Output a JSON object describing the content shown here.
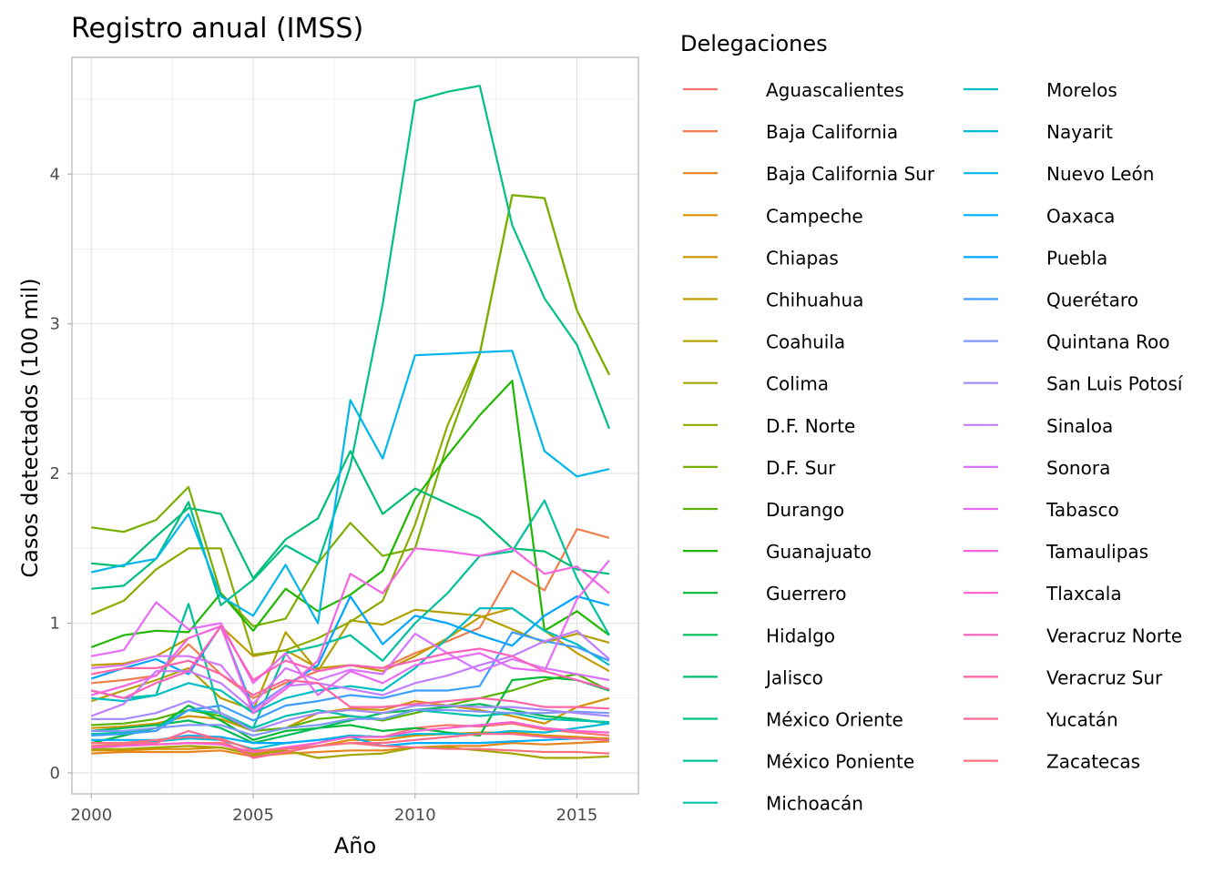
{
  "chart_data": {
    "type": "line",
    "title": "Registro anual (IMSS)",
    "xlabel": "Año",
    "ylabel": "Casos detectados (100 mil)",
    "xlim": [
      1999.4,
      2016.9
    ],
    "ylim": [
      -0.14,
      4.78
    ],
    "xticks": [
      2000,
      2005,
      2010,
      2015
    ],
    "yticks": [
      0,
      1,
      2,
      3,
      4
    ],
    "grid": true,
    "legend_title": "Delegaciones",
    "legend_position": "right",
    "x": [
      2000,
      2001,
      2002,
      2003,
      2004,
      2005,
      2006,
      2007,
      2008,
      2009,
      2010,
      2011,
      2012,
      2013,
      2014,
      2015,
      2016
    ],
    "series": [
      {
        "name": "Aguascalientes",
        "color": "#F8766D",
        "values": [
          0.18,
          0.19,
          0.19,
          0.2,
          0.2,
          0.13,
          0.16,
          0.2,
          0.25,
          0.24,
          0.3,
          0.32,
          0.31,
          0.33,
          0.29,
          0.27,
          0.25
        ]
      },
      {
        "name": "Baja California",
        "color": "#F07E4D",
        "values": [
          0.6,
          0.62,
          0.65,
          0.86,
          0.66,
          0.5,
          0.6,
          0.68,
          0.72,
          0.7,
          0.8,
          0.88,
          0.97,
          1.35,
          1.22,
          1.63,
          1.57
        ]
      },
      {
        "name": "Baja California Sur",
        "color": "#E7851E",
        "values": [
          0.13,
          0.14,
          0.14,
          0.14,
          0.15,
          0.11,
          0.13,
          0.14,
          0.15,
          0.15,
          0.17,
          0.18,
          0.18,
          0.2,
          0.19,
          0.2,
          0.21
        ]
      },
      {
        "name": "Campeche",
        "color": "#DD8D00",
        "values": [
          0.15,
          0.15,
          0.16,
          0.16,
          0.17,
          0.13,
          0.16,
          0.18,
          0.22,
          0.22,
          0.25,
          0.26,
          0.27,
          0.27,
          0.25,
          0.24,
          0.23
        ]
      },
      {
        "name": "Chiapas",
        "color": "#D09400",
        "values": [
          0.3,
          0.31,
          0.33,
          0.38,
          0.36,
          0.28,
          0.3,
          0.4,
          0.43,
          0.42,
          0.48,
          0.45,
          0.42,
          0.38,
          0.33,
          0.44,
          0.5
        ]
      },
      {
        "name": "Chihuahua",
        "color": "#C29B00",
        "values": [
          0.72,
          0.73,
          0.78,
          0.9,
          0.98,
          0.78,
          0.82,
          0.7,
          0.72,
          0.68,
          0.78,
          0.9,
          1.04,
          1.1,
          0.95,
          0.8,
          0.68
        ]
      },
      {
        "name": "Coahuila",
        "color": "#B3A000",
        "values": [
          0.48,
          0.55,
          0.62,
          0.7,
          0.5,
          0.42,
          0.94,
          0.68,
          1.02,
          0.99,
          1.09,
          1.07,
          1.05,
          0.96,
          0.87,
          0.93,
          0.87
        ]
      },
      {
        "name": "Colima",
        "color": "#A3A500",
        "values": [
          0.16,
          0.16,
          0.17,
          0.18,
          0.17,
          0.12,
          0.15,
          0.1,
          0.12,
          0.13,
          0.17,
          0.17,
          0.15,
          0.13,
          0.1,
          0.1,
          0.11
        ]
      },
      {
        "name": "D.F. Norte",
        "color": "#8FAA00",
        "values": [
          1.06,
          1.15,
          1.36,
          1.5,
          1.5,
          0.79,
          0.82,
          0.9,
          1.01,
          1.15,
          1.66,
          2.32,
          2.8,
          3.86,
          3.84,
          3.09,
          2.66
        ]
      },
      {
        "name": "D.F. Sur",
        "color": "#78AF00",
        "values": [
          1.64,
          1.61,
          1.69,
          1.91,
          1.2,
          0.98,
          1.03,
          1.4,
          1.67,
          1.45,
          1.5,
          2.2,
          2.8,
          3.86,
          3.84,
          3.09,
          2.66
        ]
      },
      {
        "name": "Durango",
        "color": "#5AB300",
        "values": [
          0.32,
          0.33,
          0.36,
          0.42,
          0.38,
          0.28,
          0.3,
          0.36,
          0.38,
          0.35,
          0.4,
          0.45,
          0.5,
          0.55,
          0.62,
          0.66,
          0.55
        ]
      },
      {
        "name": "Guanajuato",
        "color": "#1FB700",
        "values": [
          0.84,
          0.92,
          0.95,
          0.94,
          1.2,
          0.95,
          1.23,
          1.08,
          1.19,
          1.35,
          1.83,
          2.12,
          2.39,
          2.62,
          0.95,
          1.08,
          0.92
        ]
      },
      {
        "name": "Guerrero",
        "color": "#00BA38",
        "values": [
          0.2,
          0.25,
          0.3,
          0.45,
          0.35,
          0.22,
          0.28,
          0.3,
          0.32,
          0.28,
          0.3,
          0.27,
          0.25,
          0.62,
          0.64,
          0.62,
          0.55
        ]
      },
      {
        "name": "Hidalgo",
        "color": "#00BC59",
        "values": [
          0.28,
          0.3,
          0.32,
          0.35,
          0.3,
          0.2,
          0.25,
          0.3,
          0.35,
          0.4,
          0.42,
          0.44,
          0.46,
          0.42,
          0.38,
          0.36,
          0.33
        ]
      },
      {
        "name": "Jalisco",
        "color": "#00BE71",
        "values": [
          1.4,
          1.38,
          1.58,
          1.77,
          1.73,
          1.3,
          1.56,
          1.7,
          2.15,
          1.73,
          1.9,
          1.8,
          1.7,
          1.5,
          1.48,
          1.36,
          1.33
        ]
      },
      {
        "name": "México Oriente",
        "color": "#00C087",
        "values": [
          1.23,
          1.25,
          1.43,
          1.81,
          1.12,
          1.29,
          1.52,
          1.4,
          2.05,
          3.13,
          4.49,
          4.55,
          4.59,
          3.66,
          3.17,
          2.86,
          2.3
        ]
      },
      {
        "name": "México Poniente",
        "color": "#00C19A",
        "values": [
          0.55,
          0.5,
          0.52,
          1.13,
          0.38,
          0.3,
          0.8,
          0.85,
          0.92,
          0.75,
          1.0,
          1.2,
          1.45,
          1.48,
          1.82,
          1.3,
          0.92
        ]
      },
      {
        "name": "Michoacán",
        "color": "#00C0AF",
        "values": [
          0.26,
          0.27,
          0.3,
          0.42,
          0.4,
          0.3,
          0.38,
          0.42,
          0.38,
          0.36,
          0.42,
          0.4,
          0.38,
          0.4,
          0.36,
          0.35,
          0.34
        ]
      },
      {
        "name": "Morelos",
        "color": "#00BFC4",
        "values": [
          0.5,
          0.48,
          0.52,
          0.6,
          0.55,
          0.4,
          0.5,
          0.55,
          0.58,
          0.55,
          0.7,
          0.9,
          1.1,
          1.1,
          0.95,
          0.86,
          0.72
        ]
      },
      {
        "name": "Nayarit",
        "color": "#00BBD8",
        "values": [
          0.2,
          0.2,
          0.21,
          0.23,
          0.22,
          0.16,
          0.2,
          0.22,
          0.25,
          0.24,
          0.26,
          0.26,
          0.26,
          0.28,
          0.27,
          0.3,
          0.33
        ]
      },
      {
        "name": "Nuevo León",
        "color": "#00B6EB",
        "values": [
          1.34,
          1.39,
          1.43,
          1.73,
          1.18,
          1.05,
          1.39,
          1.0,
          2.49,
          2.1,
          2.79,
          2.8,
          2.81,
          2.82,
          2.15,
          1.98,
          2.03
        ]
      },
      {
        "name": "Oaxaca",
        "color": "#00ACFC",
        "values": [
          0.22,
          0.22,
          0.22,
          0.25,
          0.24,
          0.2,
          0.2,
          0.22,
          0.24,
          0.18,
          0.2,
          0.2,
          0.2,
          0.21,
          0.22,
          0.23,
          0.22
        ]
      },
      {
        "name": "Puebla",
        "color": "#00A5FF",
        "values": [
          0.63,
          0.7,
          0.76,
          0.66,
          0.98,
          0.43,
          0.58,
          0.72,
          1.18,
          0.86,
          1.05,
          1.0,
          0.92,
          0.85,
          1.05,
          1.18,
          1.12
        ]
      },
      {
        "name": "Querétaro",
        "color": "#3D9EFF",
        "values": [
          0.25,
          0.26,
          0.28,
          0.42,
          0.45,
          0.35,
          0.45,
          0.48,
          0.52,
          0.5,
          0.55,
          0.55,
          0.58,
          0.94,
          0.88,
          0.84,
          0.75
        ]
      },
      {
        "name": "Quintana Roo",
        "color": "#7F96FF",
        "values": [
          0.28,
          0.28,
          0.3,
          0.32,
          0.32,
          0.25,
          0.3,
          0.32,
          0.36,
          0.36,
          0.42,
          0.42,
          0.41,
          0.4,
          0.4,
          0.41,
          0.4
        ]
      },
      {
        "name": "San Luis Potosí",
        "color": "#A58AFF",
        "values": [
          0.36,
          0.36,
          0.4,
          0.48,
          0.4,
          0.28,
          0.35,
          0.4,
          0.42,
          0.4,
          0.45,
          0.45,
          0.44,
          0.44,
          0.42,
          0.4,
          0.38
        ]
      },
      {
        "name": "Sinaloa",
        "color": "#C27EFF",
        "values": [
          0.38,
          0.46,
          0.68,
          0.68,
          0.6,
          0.42,
          0.58,
          0.6,
          0.56,
          0.52,
          0.6,
          0.65,
          0.72,
          0.78,
          0.88,
          0.95,
          0.76
        ]
      },
      {
        "name": "Sonora",
        "color": "#D874FD",
        "values": [
          0.7,
          0.72,
          0.78,
          0.78,
          0.72,
          0.46,
          0.7,
          0.62,
          0.69,
          0.66,
          0.93,
          0.8,
          0.68,
          0.76,
          0.7,
          0.66,
          0.62
        ]
      },
      {
        "name": "Tabasco",
        "color": "#E86BF5",
        "values": [
          0.78,
          0.82,
          1.14,
          0.96,
          1.0,
          0.6,
          0.8,
          0.52,
          0.68,
          0.6,
          0.72,
          0.76,
          0.8,
          0.7,
          0.68,
          1.16,
          1.42
        ]
      },
      {
        "name": "Tamaulipas",
        "color": "#F564E3",
        "values": [
          0.52,
          0.58,
          0.65,
          0.9,
          0.98,
          0.4,
          0.56,
          0.75,
          1.33,
          1.2,
          1.5,
          1.48,
          1.45,
          1.5,
          1.33,
          1.38,
          1.2
        ]
      },
      {
        "name": "Tlaxcala",
        "color": "#FC61D1",
        "values": [
          0.17,
          0.18,
          0.19,
          0.2,
          0.19,
          0.14,
          0.17,
          0.2,
          0.24,
          0.24,
          0.28,
          0.3,
          0.32,
          0.34,
          0.3,
          0.28,
          0.27
        ]
      },
      {
        "name": "Veracruz Norte",
        "color": "#FE61BC",
        "values": [
          0.55,
          0.5,
          0.6,
          0.68,
          0.98,
          0.62,
          0.75,
          0.68,
          0.72,
          0.7,
          0.75,
          0.8,
          0.83,
          0.78,
          0.68,
          0.62,
          0.56
        ]
      },
      {
        "name": "Veracruz Sur",
        "color": "#FF64A7",
        "values": [
          0.66,
          0.7,
          0.7,
          0.75,
          0.66,
          0.52,
          0.62,
          0.6,
          0.44,
          0.44,
          0.46,
          0.48,
          0.5,
          0.48,
          0.44,
          0.44,
          0.43
        ]
      },
      {
        "name": "Yucatán",
        "color": "#FF698F",
        "values": [
          0.2,
          0.2,
          0.2,
          0.28,
          0.22,
          0.1,
          0.14,
          0.18,
          0.2,
          0.2,
          0.22,
          0.24,
          0.26,
          0.26,
          0.24,
          0.23,
          0.22
        ]
      },
      {
        "name": "Zacatecas",
        "color": "#FC717F",
        "values": [
          0.2,
          0.2,
          0.22,
          0.24,
          0.23,
          0.15,
          0.16,
          0.18,
          0.2,
          0.18,
          0.17,
          0.16,
          0.16,
          0.15,
          0.14,
          0.14,
          0.13
        ]
      }
    ]
  }
}
